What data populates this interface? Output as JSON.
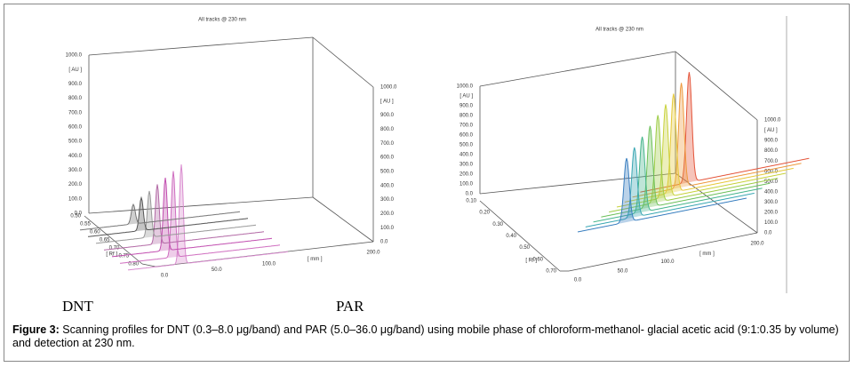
{
  "figure": {
    "panels": [
      {
        "title": "All tracks @ 230 nm",
        "label": "DNT",
        "y_ticks": [
          "1000.0",
          "[ AU ]",
          "900.0",
          "800.0",
          "700.0",
          "600.0",
          "500.0",
          "400.0",
          "300.0",
          "200.0",
          "100.0",
          "0.0"
        ],
        "rf_ticks": [
          "0.50",
          "0.55",
          "0.60",
          "0.65",
          "0.70",
          "0.75",
          "0.80"
        ],
        "rf_label": "[ Rf ]",
        "mm_ticks": [
          "0.0",
          "50.0",
          "100.0"
        ],
        "mm_label": "[ mm ]",
        "mm_end": "200.0",
        "right_ticks": [
          "1000.0",
          "[ AU ]",
          "900.0",
          "800.0",
          "700.0",
          "600.0",
          "500.0",
          "400.0",
          "300.0",
          "200.0",
          "100.0",
          "0.0"
        ]
      },
      {
        "title": "All tracks @ 230 nm",
        "label": "PAR",
        "y_ticks": [
          "1000.0",
          "[ AU ]",
          "900.0",
          "800.0",
          "700.0",
          "600.0",
          "500.0",
          "400.0",
          "300.0",
          "200.0",
          "100.0",
          "0.0"
        ],
        "rf_ticks": [
          "0.10",
          "0.20",
          "0.30",
          "0.40",
          "0.50",
          "0.60",
          "0.70"
        ],
        "rf_label": "[ Rf ]",
        "mm_ticks": [
          "0.0",
          "50.0",
          "100.0"
        ],
        "mm_label": "[ mm ]",
        "mm_end": "200.0",
        "right_ticks": [
          "1000.0",
          "[ AU ]",
          "900.0",
          "800.0",
          "700.0",
          "600.0",
          "500.0",
          "400.0",
          "300.0",
          "200.0",
          "100.0",
          "0.0"
        ]
      }
    ],
    "caption": {
      "label": "Figure 3:",
      "text": "Scanning profiles for DNT (0.3–8.0 μg/band) and PAR (5.0–36.0 μg/band) using mobile phase of chloroform-methanol- glacial acetic acid (9:1:0.35 by volume) and detection at 230 nm."
    }
  }
}
